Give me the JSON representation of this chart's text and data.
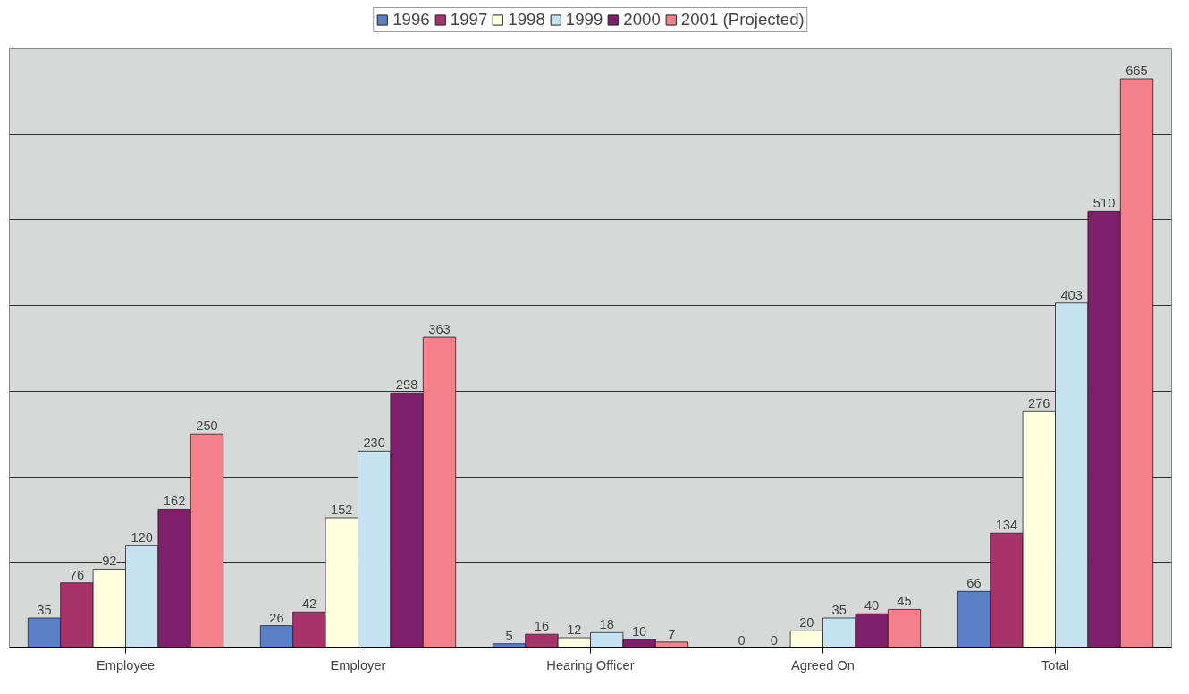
{
  "chart_data": {
    "type": "bar",
    "categories": [
      "Employee",
      "Employer",
      "Hearing Officer",
      "Agreed On",
      "Total"
    ],
    "series": [
      {
        "name": "1996",
        "color": "#5b7fc7",
        "values": [
          35,
          26,
          5,
          0,
          66
        ]
      },
      {
        "name": "1997",
        "color": "#a8336b",
        "values": [
          76,
          42,
          16,
          0,
          134
        ]
      },
      {
        "name": "1998",
        "color": "#ffffe0",
        "values": [
          92,
          152,
          12,
          20,
          276
        ]
      },
      {
        "name": "1999",
        "color": "#c5e2f0",
        "values": [
          120,
          230,
          18,
          35,
          403
        ]
      },
      {
        "name": "2000",
        "color": "#7d1f6a",
        "values": [
          162,
          298,
          10,
          40,
          510
        ]
      },
      {
        "name": "2001 (Projected)",
        "color": "#f3808a",
        "values": [
          250,
          363,
          7,
          45,
          665
        ]
      }
    ],
    "ylim": [
      0,
      700
    ],
    "yticks": [
      {
        "value": 0,
        "label": null
      },
      {
        "value": 100,
        "label": null
      },
      {
        "value": 200,
        "label": null
      },
      {
        "value": 300,
        "label": null
      },
      {
        "value": 400,
        "label": null
      },
      {
        "value": 500,
        "label": null
      },
      {
        "value": 600,
        "label": null
      },
      {
        "value": 700,
        "label": null
      }
    ],
    "tick_labels": "x",
    "grid": "y",
    "legend": "top",
    "data_labels": true
  }
}
